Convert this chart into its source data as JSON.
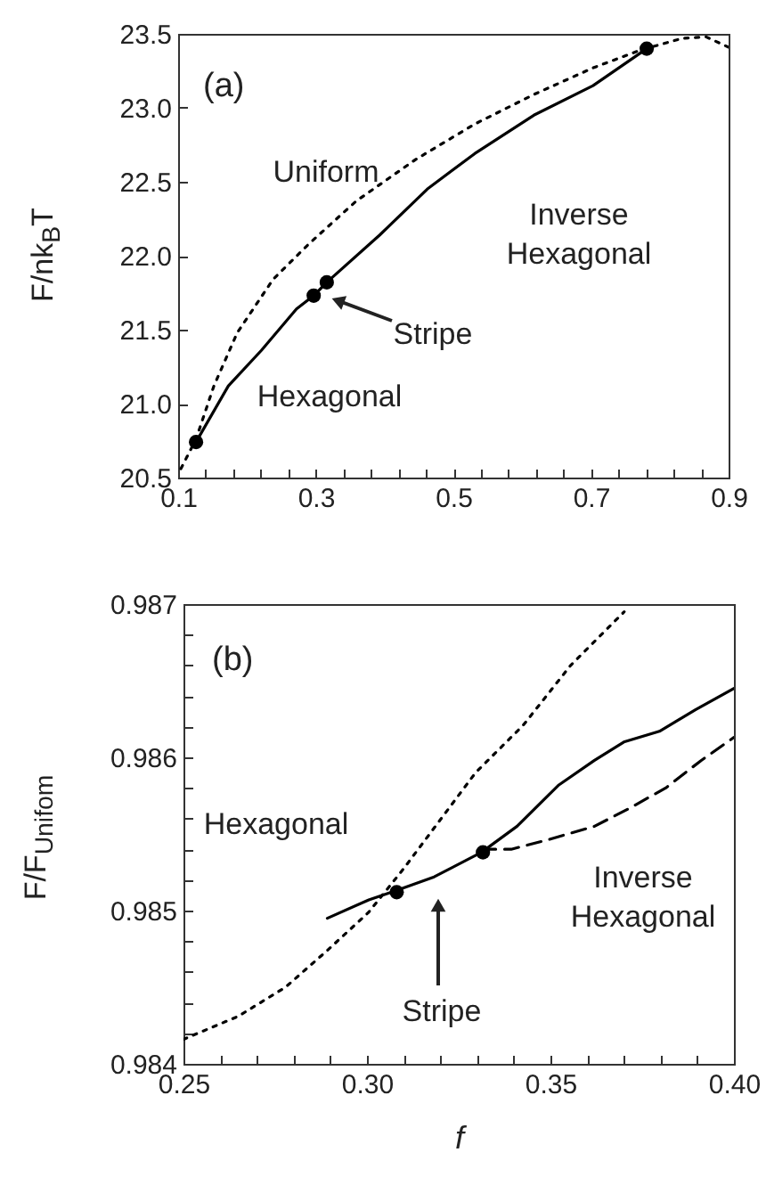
{
  "chart_data": [
    {
      "type": "line",
      "ylabel": "F/nk$_{B}$T",
      "xlim": [
        0.1,
        0.9
      ],
      "ylim": [
        20.5,
        23.5
      ],
      "xticks": [
        0.1,
        {
          "value": 0.14,
          "label": null
        },
        {
          "value": 0.18,
          "label": null
        },
        {
          "value": 0.22,
          "label": null
        },
        {
          "value": 0.26,
          "label": null
        },
        0.3,
        {
          "value": 0.34,
          "label": null
        },
        {
          "value": 0.38,
          "label": null
        },
        {
          "value": 0.42,
          "label": null
        },
        {
          "value": 0.46,
          "label": null
        },
        0.5,
        {
          "value": 0.54,
          "label": null
        },
        {
          "value": 0.58,
          "label": null
        },
        {
          "value": 0.62,
          "label": null
        },
        {
          "value": 0.66,
          "label": null
        },
        0.7,
        {
          "value": 0.74,
          "label": null
        },
        {
          "value": 0.78,
          "label": null
        },
        {
          "value": 0.82,
          "label": null
        },
        {
          "value": 0.86,
          "label": null
        },
        0.9
      ],
      "yticks": [
        20.5,
        {
          "value": 21,
          "label": "21.0"
        },
        21.5,
        {
          "value": 22,
          "label": "22.0"
        },
        22.5,
        {
          "value": 23,
          "label": "23.0"
        },
        23.5
      ],
      "series": [
        {
          "color": "#000000",
          "line_style": "dotted",
          "x": [
            0.104,
            0.126,
            0.152,
            0.186,
            0.238,
            0.29,
            0.359,
            0.445,
            0.531,
            0.617,
            0.703,
            0.772,
            0.833,
            0.867,
            0.9
          ],
          "values": [
            20.56,
            20.76,
            21.12,
            21.48,
            21.84,
            22.08,
            22.37,
            22.65,
            22.89,
            23.09,
            23.27,
            23.39,
            23.47,
            23.48,
            23.41
          ]
        },
        {
          "color": "#000000",
          "line_style": "solid",
          "x": [
            0.126,
            0.173,
            0.221,
            0.272,
            0.297,
            0.316,
            0.393,
            0.462,
            0.531,
            0.617,
            0.703,
            0.781
          ],
          "values": [
            20.74,
            21.12,
            21.36,
            21.64,
            21.73,
            21.82,
            22.14,
            22.45,
            22.69,
            22.95,
            23.15,
            23.4
          ]
        },
        {
          "type": "scatter",
          "marker": "circle",
          "color": "#000000",
          "x": [
            0.126,
            0.297,
            0.316,
            0.781
          ],
          "values": [
            20.74,
            21.73,
            21.82,
            23.4
          ]
        }
      ],
      "annotations": [
        "(a)",
        "Uniform",
        "Inverse\nHexagonal",
        "Hexagonal",
        "Stripe"
      ]
    },
    {
      "type": "line",
      "xlabel": "f",
      "ylabel": "F/F$_{Unifom}$",
      "xlim": [
        0.25,
        0.4
      ],
      "ylim": [
        0.984,
        0.987
      ],
      "xticks": [
        0.25,
        {
          "value": 0.26,
          "label": null
        },
        {
          "value": 0.27,
          "label": null
        },
        {
          "value": 0.28,
          "label": null
        },
        {
          "value": 0.29,
          "label": null
        },
        {
          "value": 0.3,
          "label": "0.30"
        },
        {
          "value": 0.31,
          "label": null
        },
        {
          "value": 0.32,
          "label": null
        },
        {
          "value": 0.33,
          "label": null
        },
        {
          "value": 0.34,
          "label": null
        },
        0.35,
        {
          "value": 0.36,
          "label": null
        },
        {
          "value": 0.37,
          "label": null
        },
        {
          "value": 0.38,
          "label": null
        },
        {
          "value": 0.39,
          "label": null
        },
        {
          "value": 0.4,
          "label": "0.40"
        }
      ],
      "yticks": [
        0.984,
        {
          "value": 0.9842,
          "label": null
        },
        {
          "value": 0.9844,
          "label": null
        },
        {
          "value": 0.9846,
          "label": null
        },
        {
          "value": 0.9848,
          "label": null
        },
        0.985,
        {
          "value": 0.9852,
          "label": null
        },
        {
          "value": 0.9854,
          "label": null
        },
        {
          "value": 0.9856,
          "label": null
        },
        {
          "value": 0.9858,
          "label": null
        },
        0.986,
        {
          "value": 0.9862,
          "label": null
        },
        {
          "value": 0.9864,
          "label": null
        },
        {
          "value": 0.9866,
          "label": null
        },
        {
          "value": 0.9868,
          "label": null
        },
        0.987
      ],
      "series": [
        {
          "color": "#000000",
          "line_style": "dotted",
          "x": [
            0.25,
            0.2649,
            0.2778,
            0.2892,
            0.3005,
            0.3102,
            0.3199,
            0.3296,
            0.3426,
            0.3555,
            0.3701
          ],
          "values": [
            0.98416,
            0.98431,
            0.9845,
            0.98474,
            0.98499,
            0.98528,
            0.98559,
            0.9859,
            0.98621,
            0.9866,
            0.98695
          ]
        },
        {
          "color": "#000000",
          "line_style": "solid",
          "x": [
            0.2892,
            0.3005,
            0.3078,
            0.3183,
            0.3312,
            0.3409,
            0.3523,
            0.362,
            0.37,
            0.3797,
            0.3895,
            0.4
          ],
          "values": [
            0.98495,
            0.98507,
            0.98513,
            0.98522,
            0.98538,
            0.98555,
            0.98582,
            0.98598,
            0.9861,
            0.98617,
            0.98631,
            0.98645
          ]
        },
        {
          "color": "#000000",
          "line_style": "dashed",
          "x": [
            0.3312,
            0.3393,
            0.349,
            0.362,
            0.3717,
            0.3814,
            0.3911,
            0.4
          ],
          "values": [
            0.9854,
            0.9854,
            0.98546,
            0.98555,
            0.98567,
            0.9858,
            0.98598,
            0.98613
          ]
        },
        {
          "type": "scatter",
          "marker": "circle",
          "color": "#000000",
          "x": [
            0.3081,
            0.3316
          ],
          "values": [
            0.98512,
            0.98538
          ]
        }
      ],
      "annotations": [
        "(b)",
        "Hexagonal",
        "Inverse\nHexagonal",
        "Stripe"
      ]
    }
  ]
}
